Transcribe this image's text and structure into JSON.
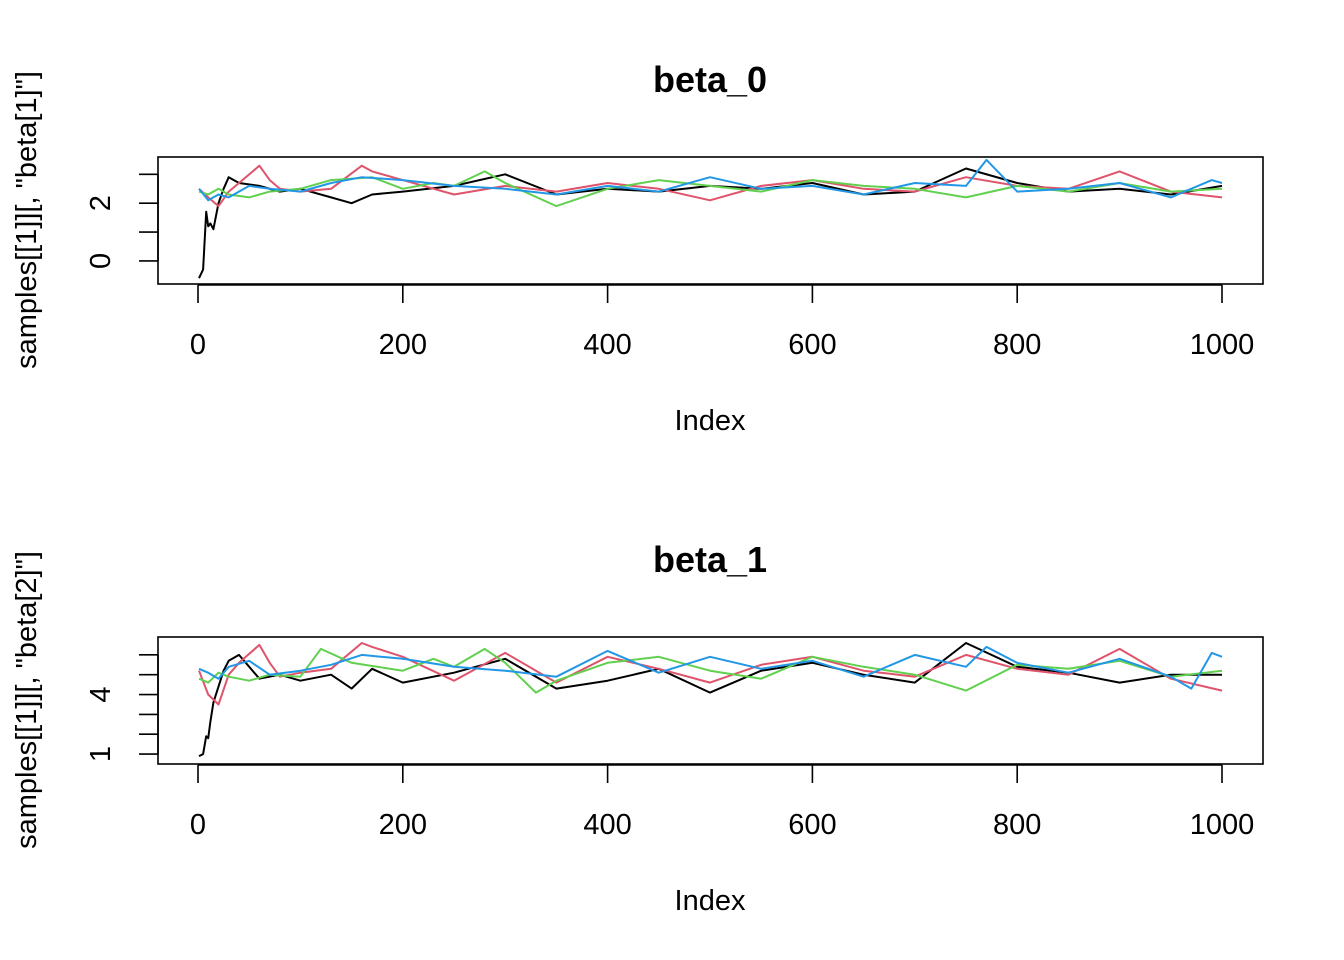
{
  "chart_data": [
    {
      "type": "line",
      "title": "beta_0",
      "xlabel": "Index",
      "ylabel": "samples[[1]][, \"beta[1]\"]",
      "xlim": [
        0,
        1000
      ],
      "ylim": [
        -0.8,
        3.6
      ],
      "x_ticks": [
        0,
        200,
        400,
        600,
        800,
        1000
      ],
      "x_tick_labels": [
        "0",
        "200",
        "400",
        "600",
        "800",
        "1000"
      ],
      "y_ticks": [
        0,
        1,
        2,
        3
      ],
      "y_tick_labels": [
        "0",
        "2"
      ],
      "y_labeled_ticks": [
        0,
        2
      ],
      "grid": false,
      "legend": "none",
      "colors": [
        "#000000",
        "#DF536B",
        "#61D04F",
        "#2297E6"
      ],
      "series": [
        {
          "color": "#000000",
          "x": [
            1,
            5,
            8,
            10,
            12,
            15,
            20,
            25,
            30,
            40,
            60,
            80,
            100,
            130,
            150,
            170,
            200,
            250,
            300,
            350,
            400,
            450,
            500,
            550,
            600,
            650,
            700,
            750,
            800,
            850,
            900,
            950,
            1000
          ],
          "values": [
            -0.6,
            -0.3,
            1.7,
            1.2,
            1.3,
            1.1,
            2.0,
            2.5,
            2.9,
            2.7,
            2.6,
            2.4,
            2.5,
            2.2,
            2.0,
            2.3,
            2.4,
            2.6,
            3.0,
            2.3,
            2.5,
            2.4,
            2.6,
            2.5,
            2.7,
            2.3,
            2.4,
            3.2,
            2.7,
            2.4,
            2.5,
            2.3,
            2.6
          ]
        },
        {
          "color": "#DF536B",
          "x": [
            1,
            10,
            20,
            30,
            40,
            60,
            70,
            80,
            100,
            130,
            160,
            170,
            200,
            250,
            300,
            350,
            400,
            450,
            500,
            550,
            600,
            650,
            700,
            750,
            800,
            850,
            900,
            950,
            1000
          ],
          "values": [
            2.5,
            2.2,
            1.9,
            2.4,
            2.7,
            3.3,
            2.8,
            2.5,
            2.4,
            2.5,
            3.3,
            3.1,
            2.8,
            2.3,
            2.6,
            2.4,
            2.7,
            2.5,
            2.1,
            2.6,
            2.8,
            2.5,
            2.4,
            2.9,
            2.6,
            2.5,
            3.1,
            2.4,
            2.2
          ]
        },
        {
          "color": "#61D04F",
          "x": [
            1,
            10,
            20,
            30,
            50,
            70,
            100,
            130,
            170,
            200,
            230,
            250,
            280,
            300,
            350,
            400,
            450,
            500,
            550,
            600,
            650,
            700,
            750,
            800,
            850,
            900,
            950,
            1000
          ],
          "values": [
            2.4,
            2.3,
            2.5,
            2.3,
            2.2,
            2.4,
            2.5,
            2.8,
            2.9,
            2.5,
            2.7,
            2.6,
            3.1,
            2.7,
            1.9,
            2.5,
            2.8,
            2.6,
            2.4,
            2.8,
            2.6,
            2.5,
            2.2,
            2.6,
            2.4,
            2.7,
            2.4,
            2.5
          ]
        },
        {
          "color": "#2297E6",
          "x": [
            1,
            10,
            20,
            30,
            50,
            70,
            100,
            130,
            160,
            200,
            250,
            300,
            350,
            400,
            450,
            500,
            550,
            600,
            650,
            700,
            750,
            770,
            800,
            850,
            900,
            950,
            990,
            1000
          ],
          "values": [
            2.5,
            2.1,
            2.3,
            2.2,
            2.6,
            2.5,
            2.4,
            2.7,
            2.9,
            2.8,
            2.6,
            2.5,
            2.3,
            2.6,
            2.4,
            2.9,
            2.5,
            2.6,
            2.3,
            2.7,
            2.6,
            3.5,
            2.4,
            2.5,
            2.7,
            2.2,
            2.8,
            2.7
          ]
        }
      ]
    },
    {
      "type": "line",
      "title": "beta_1",
      "xlabel": "Index",
      "ylabel": "samples[[1]][, \"beta[2]\"]",
      "xlim": [
        0,
        1000
      ],
      "ylim": [
        0.5,
        6.9
      ],
      "x_ticks": [
        0,
        200,
        400,
        600,
        800,
        1000
      ],
      "x_tick_labels": [
        "0",
        "200",
        "400",
        "600",
        "800",
        "1000"
      ],
      "y_ticks": [
        1,
        2,
        3,
        4,
        5,
        6
      ],
      "y_tick_labels": [
        "1",
        "4"
      ],
      "y_labeled_ticks": [
        1,
        4
      ],
      "grid": false,
      "legend": "none",
      "colors": [
        "#000000",
        "#DF536B",
        "#61D04F",
        "#2297E6"
      ],
      "series": [
        {
          "color": "#000000",
          "x": [
            1,
            5,
            8,
            10,
            12,
            15,
            20,
            25,
            30,
            40,
            60,
            80,
            100,
            130,
            150,
            170,
            200,
            250,
            300,
            350,
            400,
            450,
            500,
            550,
            600,
            650,
            700,
            750,
            800,
            850,
            900,
            950,
            1000
          ],
          "values": [
            0.9,
            1.0,
            1.9,
            1.8,
            2.6,
            3.6,
            4.4,
            5.2,
            5.7,
            6.0,
            4.8,
            5.0,
            4.7,
            5.0,
            4.3,
            5.3,
            4.6,
            5.1,
            5.8,
            4.3,
            4.7,
            5.3,
            4.1,
            5.2,
            5.6,
            5.0,
            4.6,
            6.6,
            5.4,
            5.1,
            4.6,
            5.0,
            5.0
          ]
        },
        {
          "color": "#DF536B",
          "x": [
            1,
            10,
            20,
            30,
            40,
            60,
            70,
            80,
            100,
            130,
            160,
            170,
            200,
            250,
            300,
            350,
            400,
            450,
            500,
            550,
            600,
            650,
            700,
            750,
            800,
            850,
            900,
            950,
            1000
          ],
          "values": [
            5.2,
            4.0,
            3.5,
            5.0,
            5.6,
            6.5,
            5.6,
            4.9,
            5.1,
            5.3,
            6.6,
            6.4,
            5.9,
            4.7,
            6.1,
            4.6,
            5.9,
            5.3,
            4.6,
            5.5,
            5.9,
            5.2,
            4.9,
            6.0,
            5.3,
            5.0,
            6.3,
            4.8,
            4.2
          ]
        },
        {
          "color": "#61D04F",
          "x": [
            1,
            10,
            20,
            30,
            50,
            70,
            100,
            120,
            150,
            200,
            230,
            250,
            280,
            300,
            330,
            350,
            400,
            450,
            500,
            550,
            600,
            650,
            700,
            750,
            800,
            850,
            900,
            950,
            1000
          ],
          "values": [
            4.8,
            4.6,
            5.1,
            4.9,
            4.7,
            5.0,
            4.9,
            6.3,
            5.6,
            5.2,
            5.8,
            5.4,
            6.3,
            5.6,
            4.1,
            4.7,
            5.6,
            5.9,
            5.2,
            4.8,
            5.9,
            5.4,
            5.0,
            4.2,
            5.5,
            5.3,
            5.7,
            4.9,
            5.2
          ]
        },
        {
          "color": "#2297E6",
          "x": [
            1,
            10,
            20,
            30,
            50,
            70,
            100,
            130,
            160,
            200,
            250,
            300,
            350,
            400,
            450,
            500,
            550,
            600,
            650,
            700,
            750,
            770,
            800,
            850,
            900,
            950,
            970,
            990,
            1000
          ],
          "values": [
            5.3,
            5.1,
            4.8,
            5.4,
            5.7,
            5.0,
            5.2,
            5.5,
            6.0,
            5.8,
            5.4,
            5.2,
            4.9,
            6.2,
            5.1,
            5.9,
            5.3,
            5.7,
            4.9,
            6.0,
            5.4,
            6.4,
            5.6,
            5.1,
            5.8,
            4.9,
            4.3,
            6.1,
            5.9
          ]
        }
      ]
    }
  ]
}
